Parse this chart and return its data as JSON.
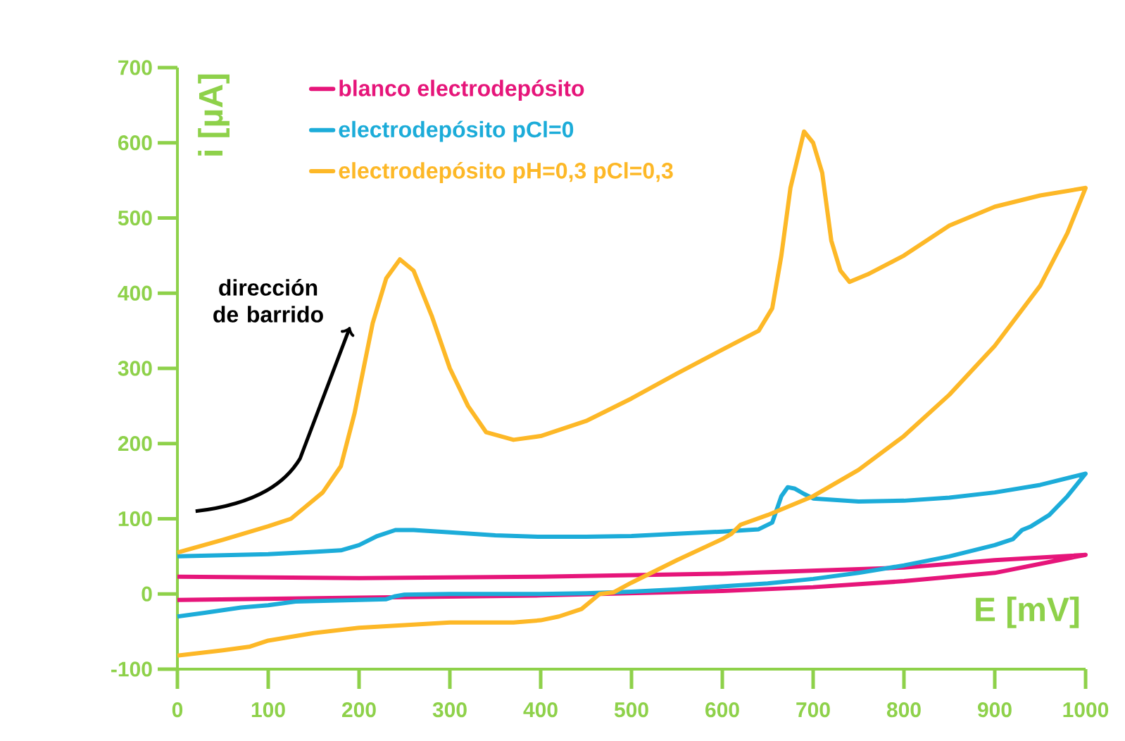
{
  "chart_data": {
    "type": "line",
    "xlabel": "E [mV]",
    "ylabel": "i [µA]",
    "xlim": [
      0,
      1000
    ],
    "ylim": [
      -100,
      700
    ],
    "xticks": [
      0,
      100,
      200,
      300,
      400,
      500,
      600,
      700,
      800,
      900,
      1000
    ],
    "yticks": [
      -100,
      0,
      100,
      200,
      300,
      400,
      500,
      600,
      700
    ],
    "grid": false,
    "legend": "top left",
    "marker": "none",
    "line_style": "solid",
    "annotations": [
      "dirección de barrido"
    ],
    "series": [
      {
        "name": "blanco electrodepósito",
        "color": "#e6157a",
        "x": [
          0,
          200,
          400,
          600,
          800,
          900,
          1000,
          950,
          900,
          800,
          700,
          600,
          400,
          200,
          0
        ],
        "values": [
          23,
          21,
          23,
          27,
          35,
          45,
          52,
          40,
          28,
          17,
          9,
          4,
          -2,
          -5,
          -8
        ]
      },
      {
        "name": "electrodepósito pCl=0",
        "color": "#1cacd9",
        "x": [
          0,
          100,
          150,
          180,
          200,
          220,
          240,
          260,
          300,
          350,
          400,
          450,
          500,
          550,
          600,
          640,
          655,
          665,
          672,
          680,
          690,
          700,
          750,
          800,
          850,
          900,
          950,
          1000,
          980,
          960,
          940,
          930,
          920,
          900,
          850,
          800,
          750,
          700,
          650,
          600,
          550,
          500,
          450,
          400,
          300,
          250,
          240,
          230,
          200,
          130,
          100,
          70,
          30,
          0
        ],
        "values": [
          50,
          53,
          56,
          58,
          65,
          77,
          85,
          85,
          82,
          78,
          76,
          76,
          77,
          80,
          83,
          86,
          95,
          130,
          142,
          140,
          133,
          127,
          123,
          124,
          128,
          135,
          145,
          160,
          130,
          105,
          90,
          85,
          73,
          65,
          50,
          38,
          28,
          20,
          14,
          10,
          6,
          3,
          1,
          0,
          0,
          -1,
          -3,
          -7,
          -8,
          -10,
          -15,
          -18,
          -25,
          -30
        ]
      },
      {
        "name": "electrodepósito pH=0,3 pCl=0,3",
        "color": "#fdb827",
        "x": [
          0,
          50,
          100,
          125,
          140,
          160,
          180,
          195,
          205,
          215,
          230,
          245,
          260,
          280,
          300,
          320,
          340,
          370,
          400,
          450,
          500,
          550,
          600,
          640,
          655,
          665,
          675,
          690,
          700,
          710,
          720,
          730,
          740,
          760,
          800,
          850,
          900,
          950,
          1000,
          980,
          950,
          900,
          850,
          800,
          750,
          700,
          650,
          620,
          610,
          600,
          550,
          500,
          480,
          465,
          445,
          420,
          400,
          370,
          300,
          200,
          150,
          100,
          80,
          50,
          0
        ],
        "values": [
          55,
          72,
          90,
          100,
          115,
          135,
          170,
          240,
          300,
          360,
          420,
          445,
          430,
          370,
          300,
          250,
          215,
          205,
          210,
          230,
          260,
          293,
          325,
          350,
          380,
          450,
          540,
          615,
          600,
          560,
          470,
          430,
          415,
          425,
          450,
          490,
          515,
          530,
          540,
          480,
          410,
          330,
          265,
          210,
          165,
          130,
          105,
          92,
          80,
          73,
          45,
          15,
          2,
          0,
          -20,
          -30,
          -35,
          -38,
          -38,
          -45,
          -52,
          -62,
          -70,
          -75,
          -82
        ]
      }
    ]
  }
}
